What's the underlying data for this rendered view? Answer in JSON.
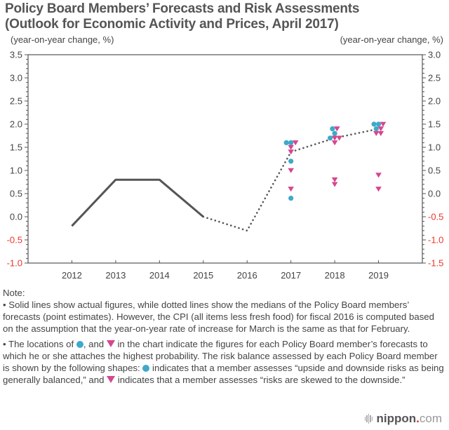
{
  "header": {
    "title_line1": "Policy Board Members’ Forecasts and Risk Assessments",
    "title_line2": "(Outlook for Economic Activity and Prices, April 2017)",
    "left_unit": "(year-on-year change, %)",
    "right_unit": "(year-on-year change, %)"
  },
  "colors": {
    "actual_line": "#555555",
    "median_line": "#555555",
    "balanced_marker": "#3fa9c9",
    "downside_marker": "#d6468f",
    "negative_label": "#e8382b",
    "axis": "#555555"
  },
  "chart_data": {
    "type": "line",
    "title": "Policy Board Members’ Forecasts and Risk Assessments (Outlook for Economic Activity and Prices, April 2017)",
    "xlabel": "",
    "ylabel": "(year-on-year change, %)",
    "y2label": "(year-on-year change, %)",
    "x_categories": [
      "2012",
      "2013",
      "2014",
      "2015",
      "2016",
      "2017",
      "2018",
      "2019"
    ],
    "xlim": [
      2011,
      2020
    ],
    "ylim": [
      -1.0,
      3.5
    ],
    "y_ticks": [
      "3.5",
      "3.0",
      "2.5",
      "2.0",
      "1.5",
      "1.0",
      "0.5",
      "0.0",
      "-0.5",
      "-1.0"
    ],
    "y2lim": [
      -1.5,
      3.0
    ],
    "y2_ticks": [
      "3.0",
      "2.5",
      "2.0",
      "1.5",
      "1.0",
      "0.5",
      "0.0",
      "-0.5",
      "-1.0",
      "-1.5"
    ],
    "grid": false,
    "series": [
      {
        "name": "Actual figures",
        "style": "solid",
        "x": [
          2012,
          2013,
          2014,
          2015
        ],
        "y": [
          -0.2,
          0.8,
          0.8,
          0.0
        ]
      },
      {
        "name": "Median forecasts",
        "style": "dotted",
        "x": [
          2015,
          2016,
          2017,
          2018,
          2019
        ],
        "y": [
          0.0,
          -0.3,
          1.4,
          1.7,
          1.9
        ]
      }
    ],
    "markers": [
      {
        "year": 2017,
        "balanced": [
          1.6,
          1.6,
          1.2,
          0.4
        ],
        "downside": [
          1.6,
          1.5,
          1.4,
          1.0,
          0.6
        ]
      },
      {
        "year": 2018,
        "balanced": [
          1.9,
          1.8,
          1.7
        ],
        "downside": [
          1.9,
          1.7,
          1.7,
          1.6,
          0.8,
          0.7
        ]
      },
      {
        "year": 2019,
        "balanced": [
          2.0,
          2.0,
          1.9
        ],
        "downside": [
          2.0,
          1.9,
          1.8,
          1.8,
          0.9,
          0.6
        ]
      }
    ],
    "legend": {
      "balanced": "indicates that a member assesses “upside and downside risks as being generally balanced”",
      "downside": "indicates that a member assesses “risks are skewed to the downside”"
    }
  },
  "notes": {
    "heading": "Note:",
    "p1": "• Solid lines show actual figures, while dotted lines show the medians of the Policy Board members’ forecasts (point estimates). However, the CPI (all items less fresh food) for fiscal 2016 is computed based on the assumption that the year-on-year rate of increase for March is the same as that for February.",
    "p2_a": "• The locations of ",
    "p2_b": ", and ",
    "p2_c": " in the chart indicate the figures for each Policy Board member’s forecasts to which he or she attaches the highest probability. The risk balance assessed by each Policy Board member is shown by the following shapes: ",
    "p2_d": " indicates that a member assesses “upside and downside risks as being generally balanced,” and ",
    "p2_e": " indicates that a member assesses “risks are skewed to the downside.”"
  },
  "logo": {
    "name": "nippon",
    "dot": ".",
    "tld": "com"
  }
}
